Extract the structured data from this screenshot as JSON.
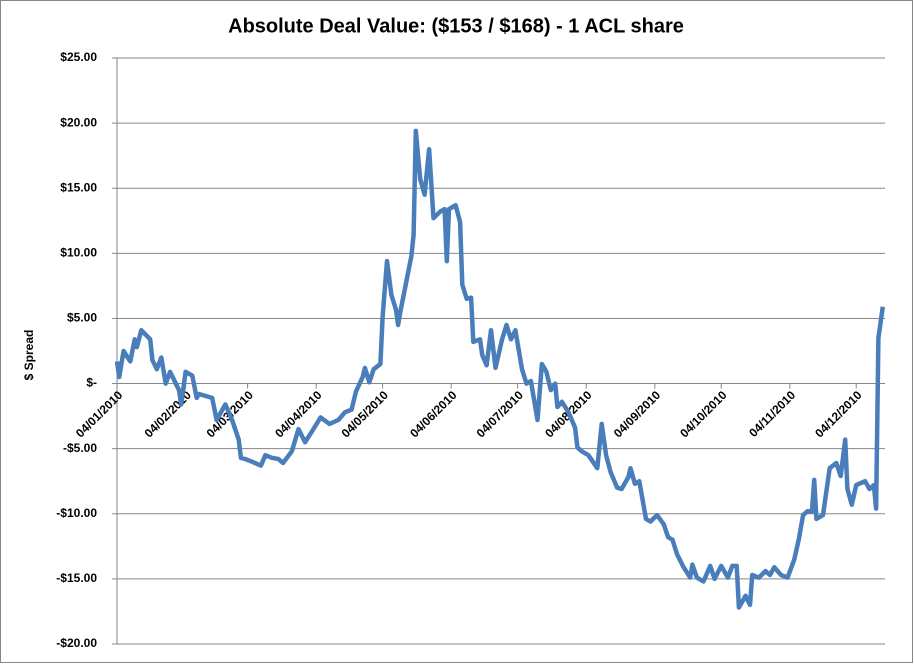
{
  "chart_data": {
    "type": "line",
    "title": "Absolute Deal Value: ($153 / $168) - 1 ACL share",
    "y_label": "$ Spread",
    "xlim": [
      "04/01/2010",
      "17/12/2010"
    ],
    "xticks": [
      "04/01/2010",
      "04/02/2010",
      "04/03/2010",
      "04/04/2010",
      "04/05/2010",
      "04/06/2010",
      "04/07/2010",
      "04/08/2010",
      "04/09/2010",
      "04/10/2010",
      "04/11/2010",
      "04/12/2010"
    ],
    "ylim": [
      -20,
      25
    ],
    "yticks": [
      {
        "value": 25,
        "label": "$25.00"
      },
      {
        "value": 20,
        "label": "$20.00"
      },
      {
        "value": 15,
        "label": "$15.00"
      },
      {
        "value": 10,
        "label": "$10.00"
      },
      {
        "value": 5,
        "label": "$5.00"
      },
      {
        "value": 0,
        "label": "$-"
      },
      {
        "value": -5,
        "label": "-$5.00"
      },
      {
        "value": -10,
        "label": "-$10.00"
      },
      {
        "value": -15,
        "label": "-$15.00"
      },
      {
        "value": -20,
        "label": "-$20.00"
      }
    ],
    "grid": true,
    "x": [
      "04/01/2010",
      "05/01/2010",
      "07/01/2010",
      "10/01/2010",
      "12/01/2010",
      "13/01/2010",
      "15/01/2010",
      "19/01/2010",
      "20/01/2010",
      "22/01/2010",
      "24/01/2010",
      "26/01/2010",
      "28/01/2010",
      "01/02/2010",
      "02/02/2010",
      "04/02/2010",
      "07/02/2010",
      "09/02/2010",
      "10/02/2010",
      "16/02/2010",
      "18/02/2010",
      "22/02/2010",
      "25/02/2010",
      "28/02/2010",
      "01/03/2010",
      "03/03/2010",
      "06/03/2010",
      "10/03/2010",
      "12/03/2010",
      "15/03/2010",
      "18/03/2010",
      "20/03/2010",
      "24/03/2010",
      "27/03/2010",
      "30/03/2010",
      "02/04/2010",
      "06/04/2010",
      "10/04/2010",
      "14/04/2010",
      "17/04/2010",
      "20/04/2010",
      "22/04/2010",
      "25/04/2010",
      "26/04/2010",
      "28/04/2010",
      "30/04/2010",
      "03/05/2010",
      "04/05/2010",
      "06/05/2010",
      "08/05/2010",
      "10/05/2010",
      "11/05/2010",
      "12/05/2010",
      "14/05/2010",
      "17/05/2010",
      "18/05/2010",
      "19/05/2010",
      "21/05/2010",
      "23/05/2010",
      "25/05/2010",
      "27/05/2010",
      "30/05/2010",
      "01/06/2010",
      "02/06/2010",
      "03/06/2010",
      "06/06/2010",
      "08/06/2010",
      "09/06/2010",
      "11/06/2010",
      "13/06/2010",
      "14/06/2010",
      "17/06/2010",
      "18/06/2010",
      "20/06/2010",
      "22/06/2010",
      "24/06/2010",
      "27/06/2010",
      "29/06/2010",
      "01/07/2010",
      "03/07/2010",
      "06/07/2010",
      "08/07/2010",
      "10/07/2010",
      "13/07/2010",
      "15/07/2010",
      "17/07/2010",
      "19/07/2010",
      "21/07/2010",
      "22/07/2010",
      "24/07/2010",
      "27/07/2010",
      "30/07/2010",
      "31/07/2010",
      "02/08/2010",
      "05/08/2010",
      "09/08/2010",
      "11/08/2010",
      "13/08/2010",
      "15/08/2010",
      "18/08/2010",
      "20/08/2010",
      "23/08/2010",
      "24/08/2010",
      "26/08/2010",
      "28/08/2010",
      "31/08/2010",
      "02/09/2010",
      "05/09/2010",
      "08/09/2010",
      "10/09/2010",
      "12/09/2010",
      "14/09/2010",
      "17/09/2010",
      "20/09/2010",
      "21/09/2010",
      "23/09/2010",
      "26/09/2010",
      "29/09/2010",
      "01/10/2010",
      "04/10/2010",
      "07/10/2010",
      "09/10/2010",
      "11/10/2010",
      "12/10/2010",
      "15/10/2010",
      "17/10/2010",
      "18/10/2010",
      "21/10/2010",
      "24/10/2010",
      "26/10/2010",
      "28/10/2010",
      "31/10/2010",
      "03/11/2010",
      "06/11/2010",
      "08/11/2010",
      "10/11/2010",
      "12/11/2010",
      "14/11/2010",
      "15/11/2010",
      "16/11/2010",
      "19/11/2010",
      "22/11/2010",
      "25/11/2010",
      "27/11/2010",
      "29/11/2010",
      "30/11/2010",
      "02/12/2010",
      "04/12/2010",
      "08/12/2010",
      "10/12/2010",
      "12/12/2010",
      "13/12/2010",
      "14/12/2010",
      "16/12/2010"
    ],
    "series": [
      {
        "color": "#4a7ebb",
        "values": [
          1.7,
          0.5,
          2.5,
          1.7,
          3.4,
          2.8,
          4.1,
          3.4,
          1.8,
          1.1,
          2.0,
          0,
          0.9,
          -0.5,
          -1.6,
          0.9,
          0.6,
          -1.1,
          -0.8,
          -1.1,
          -2.8,
          -1.6,
          -2.8,
          -4.3,
          -5.7,
          -5.8,
          -6.0,
          -6.3,
          -5.5,
          -5.7,
          -5.8,
          -6.1,
          -5.2,
          -3.5,
          -4.5,
          -3.7,
          -2.6,
          -3.1,
          -2.8,
          -2.2,
          -2.0,
          -0.6,
          0.5,
          1.2,
          0.1,
          1.1,
          1.5,
          5.1,
          9.4,
          6.8,
          5.7,
          4.5,
          5.5,
          7.2,
          9.8,
          11.4,
          19.4,
          15.7,
          14.5,
          18.0,
          12.7,
          13.2,
          13.4,
          9.4,
          13.4,
          13.7,
          12.4,
          7.6,
          6.5,
          6.6,
          3.2,
          3.4,
          2.2,
          1.4,
          4.1,
          1.2,
          3.4,
          4.5,
          3.4,
          4.1,
          1.1,
          0,
          0.2,
          -2.8,
          1.5,
          0.9,
          -0.5,
          0,
          -1.8,
          -1.4,
          -2.2,
          -3.4,
          -4.9,
          -5.2,
          -5.5,
          -6.5,
          -3.1,
          -5.5,
          -6.8,
          -8.0,
          -8.1,
          -7.2,
          -6.5,
          -7.7,
          -7.5,
          -10.4,
          -10.6,
          -10.1,
          -10.8,
          -11.8,
          -12.0,
          -13.1,
          -14.1,
          -14.9,
          -13.9,
          -14.9,
          -15.2,
          -14.0,
          -15.0,
          -14.0,
          -14.9,
          -14.0,
          -14.0,
          -17.2,
          -16.3,
          -17.0,
          -14.7,
          -14.9,
          -14.4,
          -14.7,
          -14.1,
          -14.7,
          -14.9,
          -13.5,
          -12.0,
          -10.1,
          -9.8,
          -9.8,
          -7.4,
          -10.4,
          -10.1,
          -6.5,
          -6.1,
          -7.1,
          -4.3,
          -8.1,
          -9.3,
          -7.8,
          -7.5,
          -8.1,
          -7.8,
          -9.6,
          3.5,
          5.9
        ]
      }
    ]
  }
}
